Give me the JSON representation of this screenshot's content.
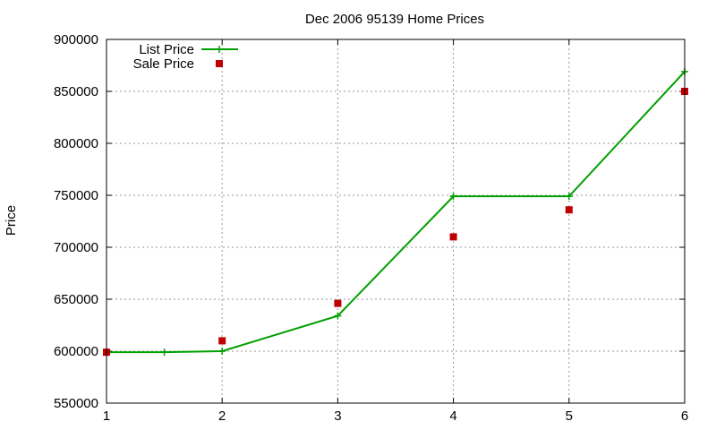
{
  "chart_data": {
    "type": "line",
    "title": "Dec 2006 95139 Home Prices",
    "xlabel": "",
    "ylabel": "Price",
    "xlim": [
      1,
      6
    ],
    "ylim": [
      550000,
      900000
    ],
    "x_ticks": [
      1,
      2,
      3,
      4,
      5,
      6
    ],
    "y_ticks": [
      550000,
      600000,
      650000,
      700000,
      750000,
      800000,
      850000,
      900000
    ],
    "grid": true,
    "legend_position": "top-left",
    "series": [
      {
        "name": "List Price",
        "style": "line-with-plus-markers",
        "color": "#00a000",
        "points": [
          {
            "x": 1,
            "y": 599000
          },
          {
            "x": 1.5,
            "y": 599000
          },
          {
            "x": 2,
            "y": 600000
          },
          {
            "x": 3,
            "y": 634000
          },
          {
            "x": 4,
            "y": 749000
          },
          {
            "x": 5,
            "y": 749000
          },
          {
            "x": 6,
            "y": 869000
          }
        ]
      },
      {
        "name": "Sale Price",
        "style": "square-markers",
        "color": "#c00000",
        "points": [
          {
            "x": 1,
            "y": 599000
          },
          {
            "x": 2,
            "y": 610000
          },
          {
            "x": 3,
            "y": 646000
          },
          {
            "x": 4,
            "y": 710000
          },
          {
            "x": 5,
            "y": 736000
          },
          {
            "x": 6,
            "y": 850000
          }
        ]
      }
    ]
  }
}
